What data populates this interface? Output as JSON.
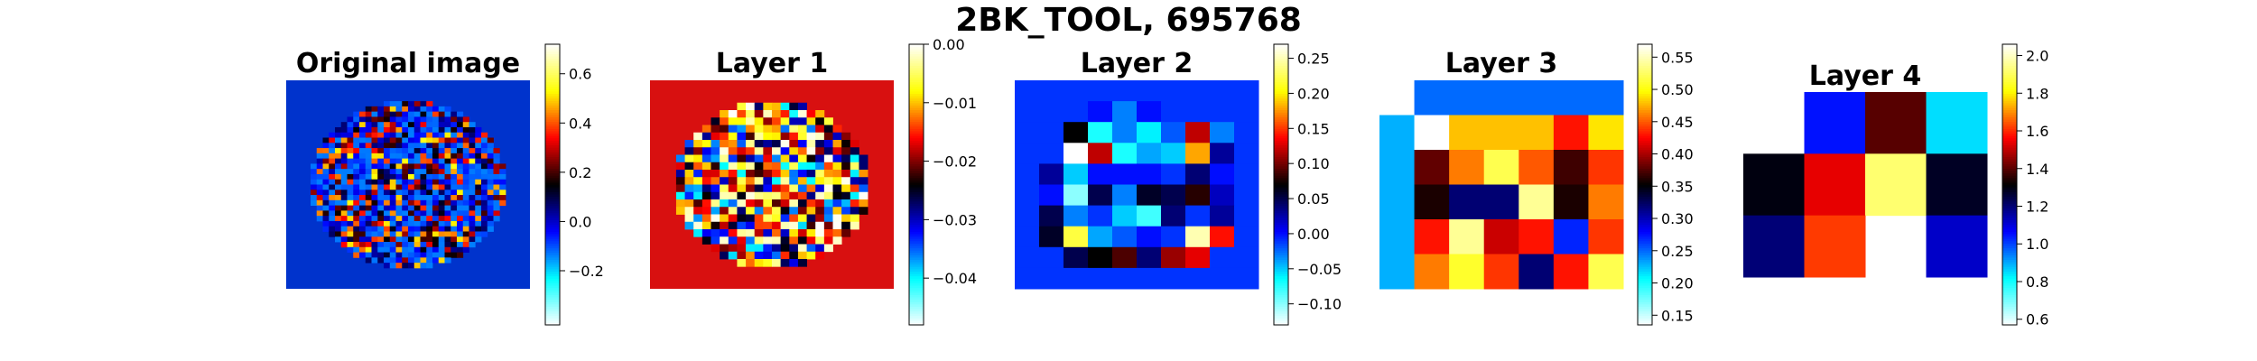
{
  "figure": {
    "suptitle": "2BK_TOOL, 695768",
    "colormap": [
      "#ffffff",
      "#00ffff",
      "#0000ff",
      "#000000",
      "#ff0000",
      "#ffff00",
      "#ffffff"
    ]
  },
  "chart_data": [
    {
      "type": "heatmap",
      "title": "Original image",
      "grid": false,
      "background": "#0033cc",
      "shape": "disk",
      "resolution": [
        40,
        40
      ],
      "colorbar": {
        "range": [
          -0.42,
          0.72
        ],
        "ticks": [
          -0.2,
          0.0,
          0.2,
          0.4,
          0.6
        ],
        "tick_labels": [
          "−0.2",
          "0.0",
          "0.2",
          "0.4",
          "0.6"
        ]
      }
    },
    {
      "type": "heatmap",
      "title": "Layer 1",
      "grid": false,
      "background": "#d81010",
      "shape": "disk",
      "resolution": [
        28,
        28
      ],
      "colorbar": {
        "range": [
          -0.048,
          0.0
        ],
        "ticks": [
          -0.04,
          -0.03,
          -0.02,
          -0.01,
          0.0
        ],
        "tick_labels": [
          "−0.04",
          "−0.03",
          "−0.02",
          "−0.01",
          "0.00"
        ]
      }
    },
    {
      "type": "heatmap",
      "title": "Layer 2",
      "grid": false,
      "colorbar": {
        "range": [
          -0.13,
          0.27
        ],
        "ticks": [
          -0.1,
          -0.05,
          0.0,
          0.05,
          0.1,
          0.15,
          0.2,
          0.25
        ],
        "tick_labels": [
          "−0.10",
          "−0.05",
          "0.00",
          "0.05",
          "0.10",
          "0.15",
          "0.20",
          "0.25"
        ]
      },
      "matrix": [
        [
          -0.01,
          -0.01,
          -0.01,
          -0.01,
          -0.01,
          -0.01,
          -0.01,
          -0.01,
          -0.01,
          -0.01
        ],
        [
          -0.01,
          -0.01,
          -0.01,
          0.0,
          -0.03,
          0.0,
          -0.01,
          -0.01,
          -0.01,
          -0.01
        ],
        [
          -0.01,
          -0.01,
          0.07,
          -0.07,
          -0.03,
          -0.06,
          -0.02,
          0.12,
          -0.03,
          -0.01
        ],
        [
          -0.01,
          -0.01,
          0.27,
          0.12,
          -0.07,
          -0.04,
          -0.05,
          0.18,
          0.03,
          -0.01
        ],
        [
          -0.01,
          0.03,
          -0.05,
          0.0,
          0.0,
          0.0,
          -0.01,
          0.04,
          0.0,
          -0.01
        ],
        [
          -0.01,
          0.0,
          -0.1,
          0.05,
          -0.03,
          0.06,
          0.05,
          0.08,
          0.02,
          -0.01
        ],
        [
          -0.01,
          0.05,
          -0.03,
          -0.01,
          -0.05,
          -0.08,
          0.04,
          -0.01,
          0.03,
          -0.01
        ],
        [
          -0.01,
          0.06,
          0.22,
          -0.04,
          -0.02,
          0.0,
          -0.01,
          0.25,
          0.14,
          -0.01
        ],
        [
          -0.01,
          -0.01,
          0.05,
          0.07,
          0.09,
          0.04,
          0.11,
          0.13,
          -0.01,
          -0.01
        ],
        [
          -0.01,
          -0.01,
          -0.01,
          -0.01,
          -0.01,
          -0.01,
          -0.01,
          -0.01,
          -0.01,
          -0.01
        ]
      ]
    },
    {
      "type": "heatmap",
      "title": "Layer 3",
      "grid": false,
      "colorbar": {
        "range": [
          0.135,
          0.57
        ],
        "ticks": [
          0.15,
          0.2,
          0.25,
          0.3,
          0.35,
          0.4,
          0.45,
          0.5,
          0.55
        ],
        "tick_labels": [
          "0.15",
          "0.20",
          "0.25",
          "0.30",
          "0.35",
          "0.40",
          "0.45",
          "0.50",
          "0.55"
        ]
      },
      "matrix": [
        [
          null,
          0.25,
          0.25,
          0.25,
          0.25,
          0.25,
          0.25
        ],
        [
          0.23,
          0.57,
          0.48,
          0.48,
          0.48,
          0.43,
          0.49
        ],
        [
          0.23,
          0.38,
          0.46,
          0.52,
          0.45,
          0.37,
          0.44
        ],
        [
          0.23,
          0.36,
          0.32,
          0.32,
          0.54,
          0.36,
          0.46
        ],
        [
          0.23,
          0.43,
          0.54,
          0.41,
          0.43,
          0.27,
          0.44
        ],
        [
          0.23,
          0.46,
          0.51,
          0.44,
          0.32,
          0.43,
          0.52
        ]
      ]
    },
    {
      "type": "heatmap",
      "title": "Layer 4",
      "grid": false,
      "colorbar": {
        "range": [
          0.57,
          2.06
        ],
        "ticks": [
          0.6,
          0.8,
          1.0,
          1.2,
          1.4,
          1.6,
          1.8,
          2.0
        ],
        "tick_labels": [
          "0.6",
          "0.8",
          "1.0",
          "1.2",
          "1.4",
          "1.6",
          "1.8",
          "2.0"
        ]
      },
      "matrix": [
        [
          null,
          1.05,
          1.4,
          0.85
        ],
        [
          1.3,
          1.54,
          1.92,
          1.28
        ],
        [
          1.2,
          1.62,
          null,
          1.12
        ]
      ]
    }
  ]
}
